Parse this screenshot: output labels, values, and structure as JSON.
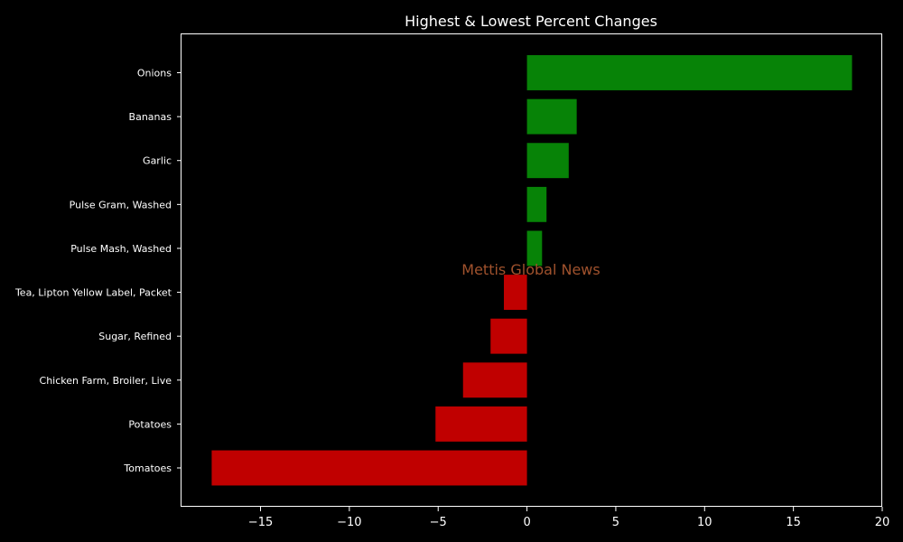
{
  "chart_data": {
    "type": "bar",
    "orientation": "horizontal",
    "title": "Highest & Lowest Percent Changes",
    "xlabel": "",
    "ylabel": "",
    "watermark": "Mettis Global News",
    "xlim": [
      -19.5,
      20
    ],
    "x_ticks": [
      -15,
      -10,
      -5,
      0,
      5,
      10,
      15,
      20
    ],
    "x_tick_labels": [
      "−15",
      "−10",
      "−5",
      "0",
      "5",
      "10",
      "15",
      "20"
    ],
    "categories": [
      "Onions",
      "Bananas",
      "Garlic",
      "Pulse Gram, Washed",
      "Pulse Mash, Washed",
      "Tea, Lipton Yellow Label, Packet",
      "Sugar, Refined",
      "Chicken Farm, Broiler, Live",
      "Potatoes",
      "Tomatoes"
    ],
    "values": [
      18.3,
      2.8,
      2.35,
      1.1,
      0.85,
      -1.3,
      -2.05,
      -3.6,
      -5.15,
      -17.75
    ],
    "colors": {
      "positive": "#078307",
      "negative": "#c00000",
      "background": "#000000",
      "axis": "#ffffff",
      "text": "#ffffff",
      "watermark": "#a0522d"
    },
    "grid": false,
    "legend": "none"
  }
}
